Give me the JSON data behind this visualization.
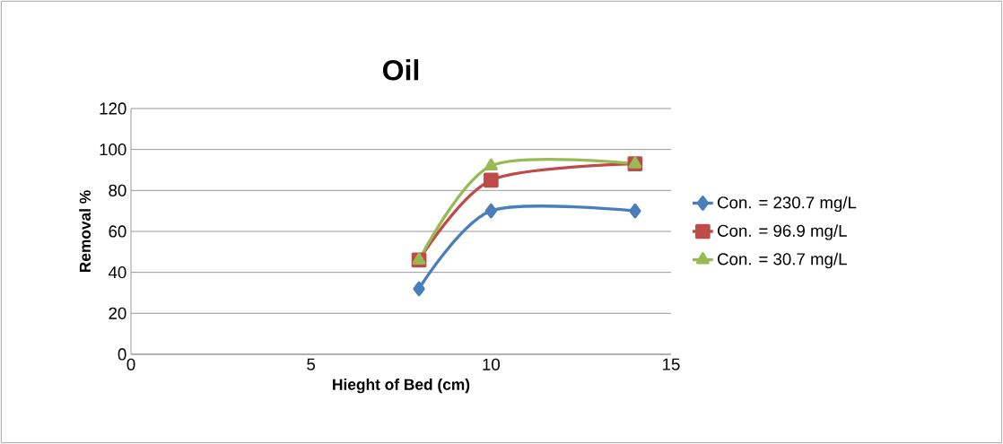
{
  "chart_data": {
    "type": "line",
    "title": "Oil",
    "xlabel": "Hieght  of Bed (cm)",
    "ylabel": "Removal %",
    "xlim": [
      0,
      15
    ],
    "xticks": [
      0,
      5,
      10,
      15
    ],
    "ylim": [
      0,
      120
    ],
    "yticks": [
      0,
      20,
      40,
      60,
      80,
      100,
      120
    ],
    "grid": "y",
    "legend": "right",
    "series": [
      {
        "name": "Con. = 230.7 mg/L",
        "color": "#4a7ebb",
        "marker": "diamond",
        "x": [
          8,
          10,
          14
        ],
        "values": [
          32,
          70,
          70
        ]
      },
      {
        "name": "Con. = 96.9   mg/L",
        "color": "#be4b48",
        "marker": "square",
        "x": [
          8,
          10,
          14
        ],
        "values": [
          46,
          85,
          93
        ]
      },
      {
        "name": "Con. = 30.7   mg/L",
        "color": "#98b954",
        "marker": "triangle",
        "x": [
          8,
          10,
          14
        ],
        "values": [
          46,
          92,
          93
        ]
      }
    ]
  }
}
